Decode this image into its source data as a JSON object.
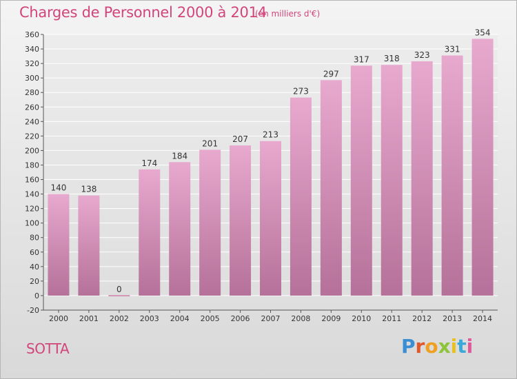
{
  "title": "Charges de Personnel 2000 à 2014",
  "subtitle": "(en milliers d'€)",
  "footer_label": "SOTTA",
  "logo": {
    "text": "Proxiti",
    "letters": [
      {
        "ch": "P",
        "color": "#3a8fd4"
      },
      {
        "ch": "r",
        "color": "#e0572a"
      },
      {
        "ch": "o",
        "color": "#f0a020"
      },
      {
        "ch": "x",
        "color": "#8cc43a"
      },
      {
        "ch": "i",
        "color": "#e8c020"
      },
      {
        "ch": "t",
        "color": "#3aa8d8"
      },
      {
        "ch": "i",
        "color": "#e05a9a"
      }
    ]
  },
  "colors": {
    "bar_top": "#e8a9cf",
    "bar_bottom": "#b57199",
    "title": "#d2457b",
    "zero_bar": "#d27fa8"
  },
  "chart_data": {
    "type": "bar",
    "categories": [
      "2000",
      "2001",
      "2002",
      "2003",
      "2004",
      "2005",
      "2006",
      "2007",
      "2008",
      "2009",
      "2010",
      "2011",
      "2012",
      "2013",
      "2014"
    ],
    "values": [
      140,
      138,
      0,
      174,
      184,
      201,
      207,
      213,
      273,
      297,
      317,
      318,
      323,
      331,
      354
    ],
    "title": "Charges de Personnel 2000 à 2014",
    "ylim": [
      -20,
      360
    ],
    "yticks": [
      -20,
      0,
      20,
      40,
      60,
      80,
      100,
      120,
      140,
      160,
      180,
      200,
      220,
      240,
      260,
      280,
      300,
      320,
      340,
      360
    ],
    "grid": true
  }
}
